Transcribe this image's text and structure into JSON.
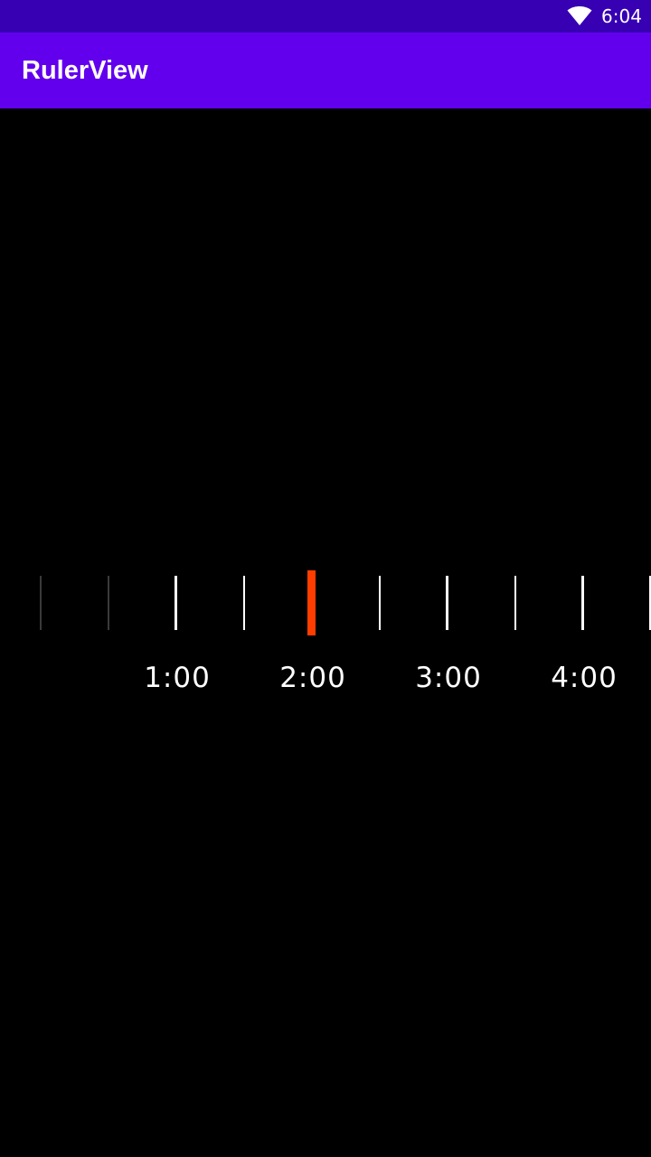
{
  "status_bar": {
    "time": "6:04",
    "wifi_icon": "wifi-icon"
  },
  "app_bar": {
    "title": "RulerView"
  },
  "ruler": {
    "labels": [
      "1:00",
      "2:00",
      "3:00",
      "4:00"
    ],
    "selected_value": "2:00",
    "indicator_color": "#FF3D00",
    "tick_color": "#FFFFFF"
  },
  "colors": {
    "status_bar": "#3700B3",
    "app_bar": "#6200EE",
    "background": "#000000"
  }
}
